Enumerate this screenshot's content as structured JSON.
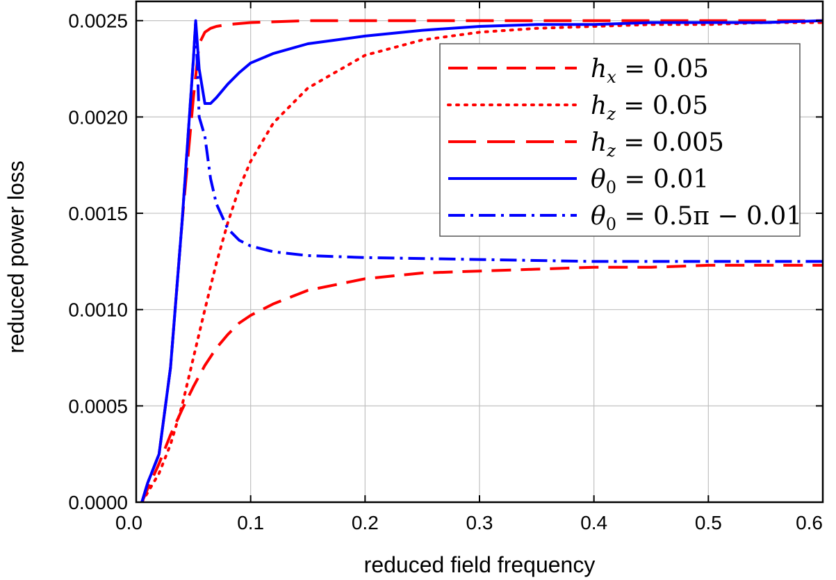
{
  "chart_data": {
    "type": "line",
    "title": "",
    "xlabel": "reduced field frequency",
    "ylabel": "reduced power loss",
    "xlim": [
      0.0,
      0.6
    ],
    "ylim": [
      0.0,
      0.0026
    ],
    "xticks": [
      0.0,
      0.1,
      0.2,
      0.3,
      0.4,
      0.5,
      0.6
    ],
    "xtick_labels": [
      "0.0",
      "0.1",
      "0.2",
      "0.3",
      "0.4",
      "0.5",
      "0.6"
    ],
    "yticks": [
      0.0,
      0.0005,
      0.001,
      0.0015,
      0.002,
      0.0025
    ],
    "ytick_labels": [
      "0.0000",
      "0.0005",
      "0.0010",
      "0.0015",
      "0.0020",
      "0.0025"
    ],
    "grid": true,
    "legend_position": "top-right",
    "series": [
      {
        "name": "h_x = 0.05",
        "legend": {
          "base": "h",
          "sub": "x",
          "rest": " = 0.05"
        },
        "color": "#ff0000",
        "style": "dashed",
        "x": [
          0.005,
          0.01,
          0.02,
          0.03,
          0.04,
          0.05,
          0.06,
          0.07,
          0.08,
          0.09,
          0.1,
          0.12,
          0.15,
          0.2,
          0.25,
          0.3,
          0.35,
          0.4,
          0.45,
          0.5,
          0.55,
          0.6
        ],
        "y": [
          0.0,
          7e-05,
          0.0002,
          0.00035,
          0.00048,
          0.0006,
          0.00071,
          0.0008,
          0.00087,
          0.00093,
          0.00097,
          0.00103,
          0.0011,
          0.00116,
          0.00119,
          0.0012,
          0.00121,
          0.00122,
          0.00122,
          0.00123,
          0.00123,
          0.00123
        ]
      },
      {
        "name": "h_z = 0.05",
        "legend": {
          "base": "h",
          "sub": "z",
          "rest": " = 0.05"
        },
        "color": "#ff0000",
        "style": "dotted",
        "x": [
          0.005,
          0.01,
          0.02,
          0.03,
          0.04,
          0.05,
          0.06,
          0.07,
          0.08,
          0.09,
          0.1,
          0.12,
          0.15,
          0.2,
          0.25,
          0.3,
          0.35,
          0.4,
          0.45,
          0.5,
          0.55,
          0.6
        ],
        "y": [
          0.0,
          5e-05,
          0.00015,
          0.0003,
          0.0005,
          0.00075,
          0.001,
          0.00124,
          0.00145,
          0.00163,
          0.00177,
          0.00197,
          0.00215,
          0.00232,
          0.0024,
          0.00244,
          0.00246,
          0.00247,
          0.00248,
          0.00248,
          0.00249,
          0.00249
        ]
      },
      {
        "name": "h_z = 0.005",
        "legend": {
          "base": "h",
          "sub": "z",
          "rest": " = 0.005"
        },
        "color": "#ff0000",
        "style": "longdash",
        "x": [
          0.005,
          0.01,
          0.02,
          0.03,
          0.04,
          0.05,
          0.055,
          0.06,
          0.065,
          0.07,
          0.08,
          0.1,
          0.15,
          0.2,
          0.3,
          0.4,
          0.5,
          0.6
        ],
        "y": [
          0.0,
          0.0001,
          0.00025,
          0.0007,
          0.00145,
          0.0021,
          0.00238,
          0.00244,
          0.00246,
          0.00247,
          0.00248,
          0.00249,
          0.0025,
          0.0025,
          0.0025,
          0.0025,
          0.0025,
          0.0025
        ]
      },
      {
        "name": "θ0 = 0.01",
        "legend": {
          "base": "θ",
          "sub": "0",
          "rest": " = 0.01"
        },
        "color": "#0000ff",
        "style": "solid",
        "x": [
          0.005,
          0.01,
          0.02,
          0.03,
          0.04,
          0.05,
          0.052,
          0.055,
          0.06,
          0.065,
          0.07,
          0.08,
          0.09,
          0.1,
          0.12,
          0.15,
          0.2,
          0.25,
          0.3,
          0.35,
          0.4,
          0.45,
          0.5,
          0.55,
          0.6
        ],
        "y": [
          0.0,
          0.0001,
          0.00025,
          0.0007,
          0.00145,
          0.0023,
          0.0025,
          0.00225,
          0.00207,
          0.00207,
          0.0021,
          0.00217,
          0.00223,
          0.00228,
          0.00233,
          0.00238,
          0.00242,
          0.00245,
          0.00247,
          0.00248,
          0.00248,
          0.00249,
          0.00249,
          0.00249,
          0.0025
        ]
      },
      {
        "name": "θ0 = 0.5π − 0.01",
        "legend": {
          "base": "θ",
          "sub": "0",
          "rest": " = 0.5π − 0.01"
        },
        "color": "#0000ff",
        "style": "dashdot",
        "x": [
          0.005,
          0.01,
          0.02,
          0.03,
          0.04,
          0.05,
          0.052,
          0.055,
          0.06,
          0.065,
          0.07,
          0.08,
          0.09,
          0.1,
          0.12,
          0.15,
          0.2,
          0.3,
          0.4,
          0.5,
          0.6
        ],
        "y": [
          0.0,
          0.0001,
          0.00025,
          0.0007,
          0.00145,
          0.0023,
          0.0025,
          0.002,
          0.0019,
          0.00168,
          0.00155,
          0.00142,
          0.00136,
          0.00133,
          0.0013,
          0.00128,
          0.00127,
          0.00126,
          0.00125,
          0.00125,
          0.00125
        ]
      }
    ]
  }
}
